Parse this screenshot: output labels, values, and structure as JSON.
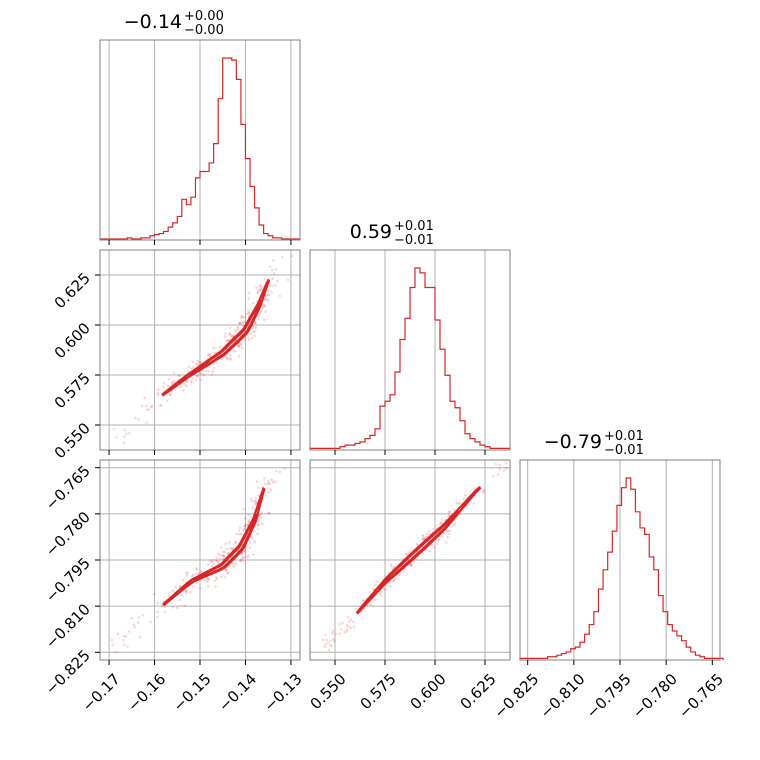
{
  "color": "#d62728",
  "chart_data": {
    "type": "corner",
    "parameters": [
      {
        "title": {
          "main": "−0.14",
          "sup": "+0.00",
          "sub": "−0.00"
        },
        "range": [
          -0.172,
          -0.128
        ],
        "ticks": [
          -0.17,
          -0.16,
          -0.15,
          -0.14,
          -0.13
        ],
        "tick_labels": [
          "−0.17",
          "−0.16",
          "−0.15",
          "−0.14",
          "−0.13"
        ]
      },
      {
        "title": {
          "main": "0.59",
          "sup": "+0.01",
          "sub": "−0.01"
        },
        "range": [
          0.5375,
          0.6375
        ],
        "ticks": [
          0.55,
          0.575,
          0.6,
          0.625
        ],
        "tick_labels": [
          "0.550",
          "0.575",
          "0.600",
          "0.625"
        ]
      },
      {
        "title": {
          "main": "−0.79",
          "sup": "+0.01",
          "sub": "−0.01"
        },
        "range": [
          -0.8275,
          -0.7625
        ],
        "ticks": [
          -0.825,
          -0.81,
          -0.795,
          -0.78,
          -0.765
        ],
        "tick_labels": [
          "−0.825",
          "−0.810",
          "−0.795",
          "−0.780",
          "−0.765"
        ]
      }
    ],
    "histograms": [
      {
        "param": 0,
        "bin_start": -0.172,
        "bin_width": 0.001,
        "counts": [
          1,
          1,
          1,
          1,
          1,
          1,
          2,
          1,
          1,
          2,
          2,
          4,
          5,
          6,
          8,
          12,
          16,
          22,
          38,
          33,
          40,
          58,
          64,
          64,
          72,
          90,
          132,
          170,
          170,
          168,
          150,
          108,
          76,
          50,
          30,
          14,
          6,
          4,
          2,
          2,
          1,
          1,
          1,
          1
        ]
      },
      {
        "param": 1,
        "bin_start": 0.5375,
        "bin_width": 0.0025,
        "counts": [
          1,
          1,
          1,
          1,
          1,
          1,
          2,
          3,
          3,
          4,
          5,
          7,
          9,
          13,
          27,
          30,
          34,
          48,
          68,
          81,
          100,
          112,
          109,
          100,
          100,
          80,
          62,
          46,
          30,
          26,
          18,
          10,
          7,
          5,
          3,
          2,
          1,
          1,
          1,
          1
        ]
      },
      {
        "param": 2,
        "bin_start": -0.8275,
        "bin_width": 0.0015,
        "counts": [
          1,
          1,
          1,
          1,
          1,
          1,
          2,
          2,
          3,
          4,
          5,
          7,
          8,
          11,
          16,
          22,
          30,
          44,
          56,
          67,
          80,
          96,
          107,
          113,
          106,
          92,
          82,
          78,
          64,
          56,
          40,
          30,
          22,
          18,
          15,
          12,
          8,
          5,
          3,
          2,
          1,
          1,
          1,
          1
        ]
      }
    ],
    "pairs": [
      {
        "x_param": 0,
        "y_param": 1,
        "ridge": [
          [
            -0.168,
            0.545
          ],
          [
            -0.16,
            0.562
          ],
          [
            -0.153,
            0.574
          ],
          [
            -0.145,
            0.586
          ],
          [
            -0.14,
            0.597
          ],
          [
            -0.137,
            0.61
          ],
          [
            -0.135,
            0.622
          ],
          [
            -0.131,
            0.633
          ]
        ],
        "x_spread": 0.0012,
        "y_spread": 0.0026
      },
      {
        "x_param": 0,
        "y_param": 2,
        "ridge": [
          [
            -0.168,
            -0.823
          ],
          [
            -0.16,
            -0.812
          ],
          [
            -0.152,
            -0.802
          ],
          [
            -0.145,
            -0.797
          ],
          [
            -0.141,
            -0.791
          ],
          [
            -0.138,
            -0.782
          ],
          [
            -0.136,
            -0.772
          ],
          [
            -0.133,
            -0.766
          ]
        ],
        "x_spread": 0.0012,
        "y_spread": 0.0018
      },
      {
        "x_param": 1,
        "y_param": 2,
        "ridge": [
          [
            0.545,
            -0.823
          ],
          [
            0.56,
            -0.813
          ],
          [
            0.575,
            -0.802
          ],
          [
            0.59,
            -0.793
          ],
          [
            0.605,
            -0.784
          ],
          [
            0.62,
            -0.773
          ],
          [
            0.635,
            -0.764
          ]
        ],
        "x_spread": 0.0018,
        "y_spread": 0.0012
      }
    ]
  }
}
